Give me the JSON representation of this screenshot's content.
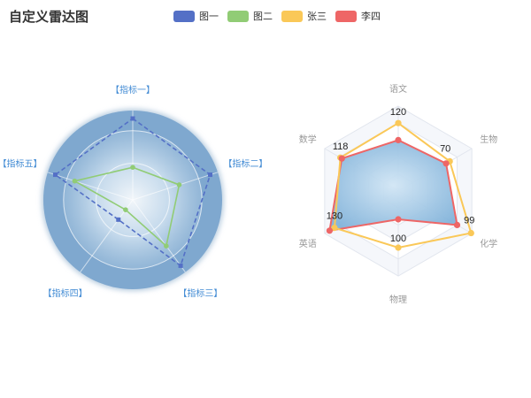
{
  "chart_data": [
    {
      "type": "radar",
      "title": "自定义雷达图",
      "legend": {
        "placement": "top-center",
        "items": [
          {
            "name": "图一",
            "color": "#5470c6"
          },
          {
            "name": "图二",
            "color": "#91cc75"
          },
          {
            "name": "张三",
            "color": "#fac858"
          },
          {
            "name": "李四",
            "color": "#ee6666"
          }
        ]
      },
      "shape": "circle",
      "axis_max": 100,
      "indicators": [
        "【指标一】",
        "【指标二】",
        "【指标三】",
        "【指标四】",
        "【指标五】"
      ],
      "indicator_color": "#428BD4",
      "series": [
        {
          "name": "图一",
          "values": [
            100,
            100,
            100,
            30,
            100
          ],
          "color": "#5470c6",
          "line_style": "dashed"
        },
        {
          "name": "图二",
          "values": [
            40,
            60,
            70,
            15,
            75
          ],
          "color": "#91cc75",
          "line_style": "solid"
        }
      ]
    },
    {
      "type": "radar",
      "shape": "polygon",
      "indicators": [
        {
          "name": "语文",
          "max": 150
        },
        {
          "name": "生物",
          "max": 100
        },
        {
          "name": "化学",
          "max": 100
        },
        {
          "name": "物理",
          "max": 150
        },
        {
          "name": "英语",
          "max": 150
        },
        {
          "name": "数学",
          "max": 150
        }
      ],
      "series": [
        {
          "name": "张三",
          "values": [
            120,
            70,
            99,
            100,
            130,
            118
          ],
          "color": "#fac858",
          "show_labels": true
        },
        {
          "name": "李四",
          "values": [
            90,
            65,
            80,
            50,
            140,
            115
          ],
          "color": "#ee6666",
          "show_labels": false
        }
      ]
    }
  ]
}
